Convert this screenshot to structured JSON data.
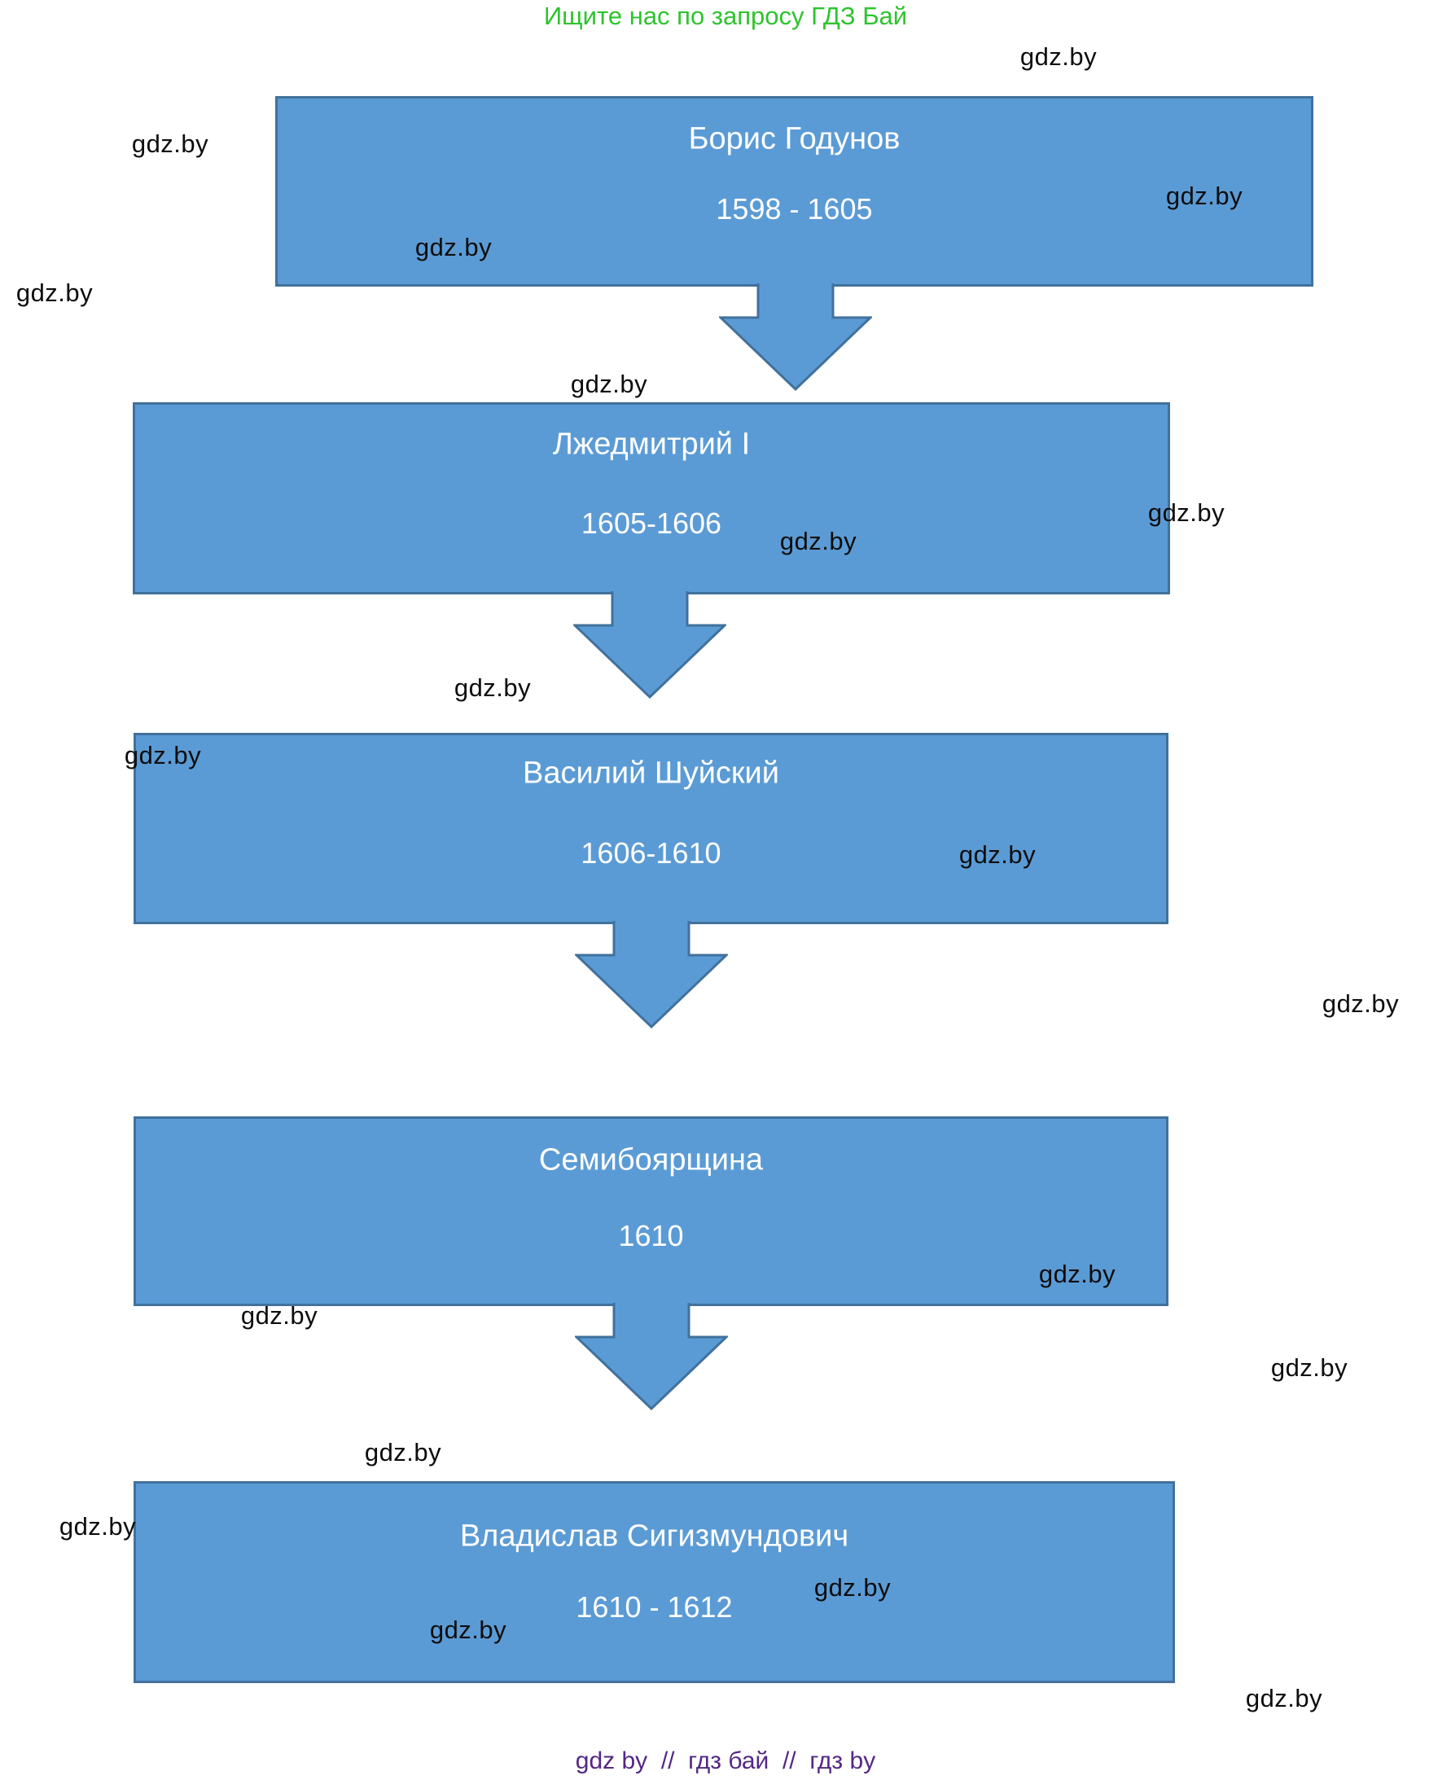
{
  "header": {
    "promo_text": "Ищите нас по запросу ГДЗ Бай"
  },
  "colors": {
    "promo_green": "#2ec42e",
    "box_fill": "#5b9bd5",
    "box_border": "#41719c",
    "box_text": "#ffffff",
    "watermark_black": "#0d0d0d",
    "footer_purple": "#542886",
    "background": "#ffffff"
  },
  "diagram": {
    "type": "vertical-flowchart",
    "connector": "block-down-arrow",
    "nodes": [
      {
        "title": "Борис Годунов",
        "period": "1598 - 1605"
      },
      {
        "title": "Лжедмитрий I",
        "period": "1605-1606"
      },
      {
        "title": "Василий Шуйский",
        "period": "1606-1610"
      },
      {
        "title": "Семибоярщина",
        "period": "1610"
      },
      {
        "title": "Владислав Сигизмундович",
        "period": "1610 - 1612"
      }
    ]
  },
  "watermark": {
    "label": "gdz.by",
    "count": 20
  },
  "footer": {
    "text": "gdz by  //  гдз бай  //  гдз by"
  }
}
